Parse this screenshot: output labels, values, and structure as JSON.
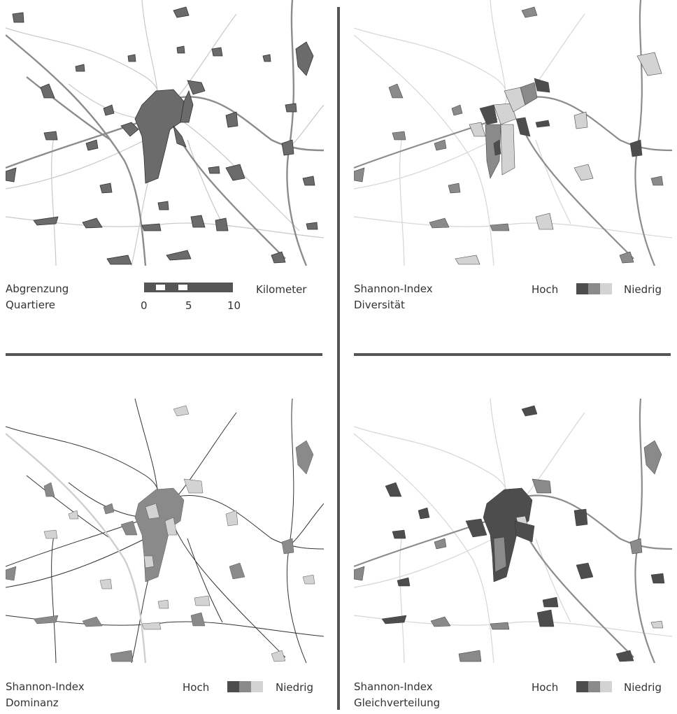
{
  "panels": [
    {
      "id": "boundaries",
      "title_line1": "Abgrenzung",
      "title_line2": "Quartiere",
      "scale": {
        "unit": "Kilometer",
        "ticks": [
          "0",
          "5",
          "10"
        ]
      }
    },
    {
      "id": "diversity",
      "title_line1": "Shannon-Index",
      "title_line2": "Diversität",
      "legend": {
        "high": "Hoch",
        "low": "Niedrig"
      }
    },
    {
      "id": "dominance",
      "title_line1": "Shannon-Index",
      "title_line2": "Dominanz",
      "legend": {
        "high": "Hoch",
        "low": "Niedrig"
      }
    },
    {
      "id": "evenness",
      "title_line1": "Shannon-Index",
      "title_line2": "Gleichverteilung",
      "legend": {
        "high": "Hoch",
        "low": "Niedrig"
      }
    }
  ],
  "colors": {
    "high": "#4d4d4d",
    "mid": "#8a8a8a",
    "low": "#d3d3d3",
    "road_major": "#8c8c8c",
    "road_minor": "#c8c8c8",
    "divider": "#555555"
  }
}
